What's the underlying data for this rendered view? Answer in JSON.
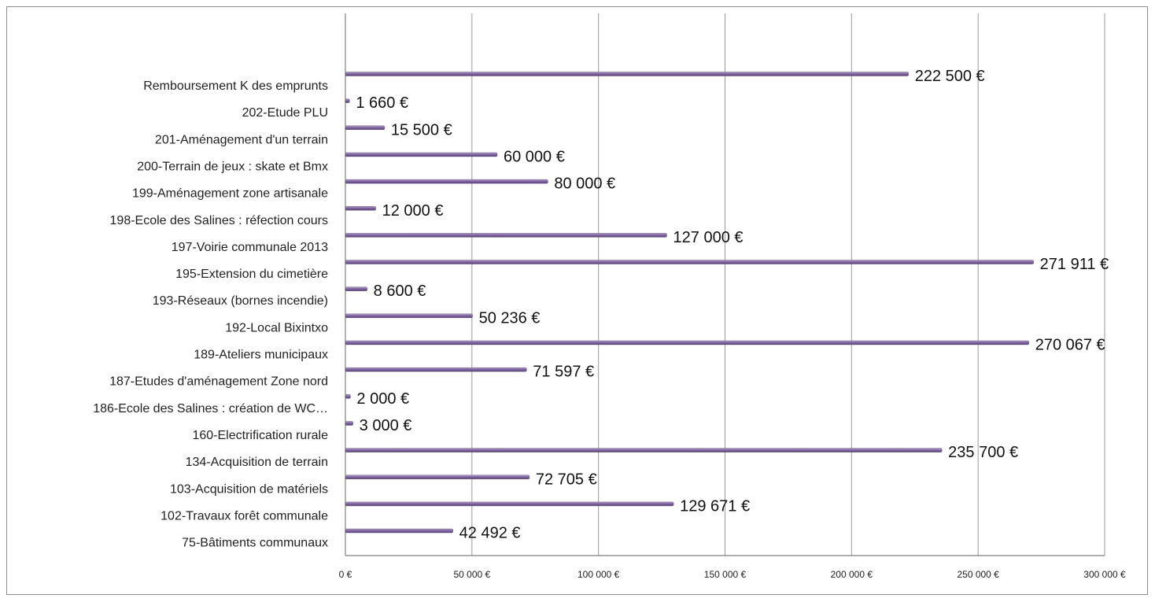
{
  "chart_data": {
    "type": "bar",
    "orientation": "horizontal",
    "categories": [
      "Remboursement K des emprunts",
      "202-Etude PLU",
      "201-Aménagement d'un terrain",
      "200-Terrain de jeux : skate et Bmx",
      "199-Aménagement zone artisanale",
      "198-Ecole des Salines : réfection cours",
      "197-Voirie communale 2013",
      "195-Extension du cimetière",
      "193-Réseaux (bornes incendie)",
      "192-Local Bixintxo",
      "189-Ateliers municipaux",
      "187-Etudes d'aménagement Zone nord",
      "186-Ecole des Salines : création de WC…",
      "160-Electrification rurale",
      "134-Acquisition de terrain",
      "103-Acquisition de matériels",
      "102-Travaux forêt communale",
      "75-Bâtiments communaux"
    ],
    "values": [
      222500,
      1660,
      15500,
      60000,
      80000,
      12000,
      127000,
      271911,
      8600,
      50236,
      270067,
      71597,
      2000,
      3000,
      235700,
      72705,
      129671,
      42492
    ],
    "value_labels": [
      "222 500 €",
      "1 660 €",
      "15 500 €",
      "60 000 €",
      "80 000 €",
      "12 000 €",
      "127 000 €",
      "271 911 €",
      "8 600 €",
      "50 236 €",
      "270 067 €",
      "71 597 €",
      "2 000 €",
      "3 000 €",
      "235 700 €",
      "72 705 €",
      "129 671 €",
      "42 492 €"
    ],
    "xlim": [
      0,
      300000
    ],
    "x_ticks": [
      0,
      50000,
      100000,
      150000,
      200000,
      250000,
      300000
    ],
    "x_tick_labels": [
      "0 €",
      "50 000 €",
      "100 000 €",
      "150 000 €",
      "200 000 €",
      "250 000 €",
      "300 000 €"
    ],
    "grid": true,
    "legend": "none",
    "title": "",
    "xlabel": "",
    "ylabel": "",
    "colors": {
      "bar": "#8064a2",
      "bar_highlight": "#b3a2c7",
      "bar_shadow": "#5c4677",
      "grid": "#9a9a9a"
    }
  }
}
